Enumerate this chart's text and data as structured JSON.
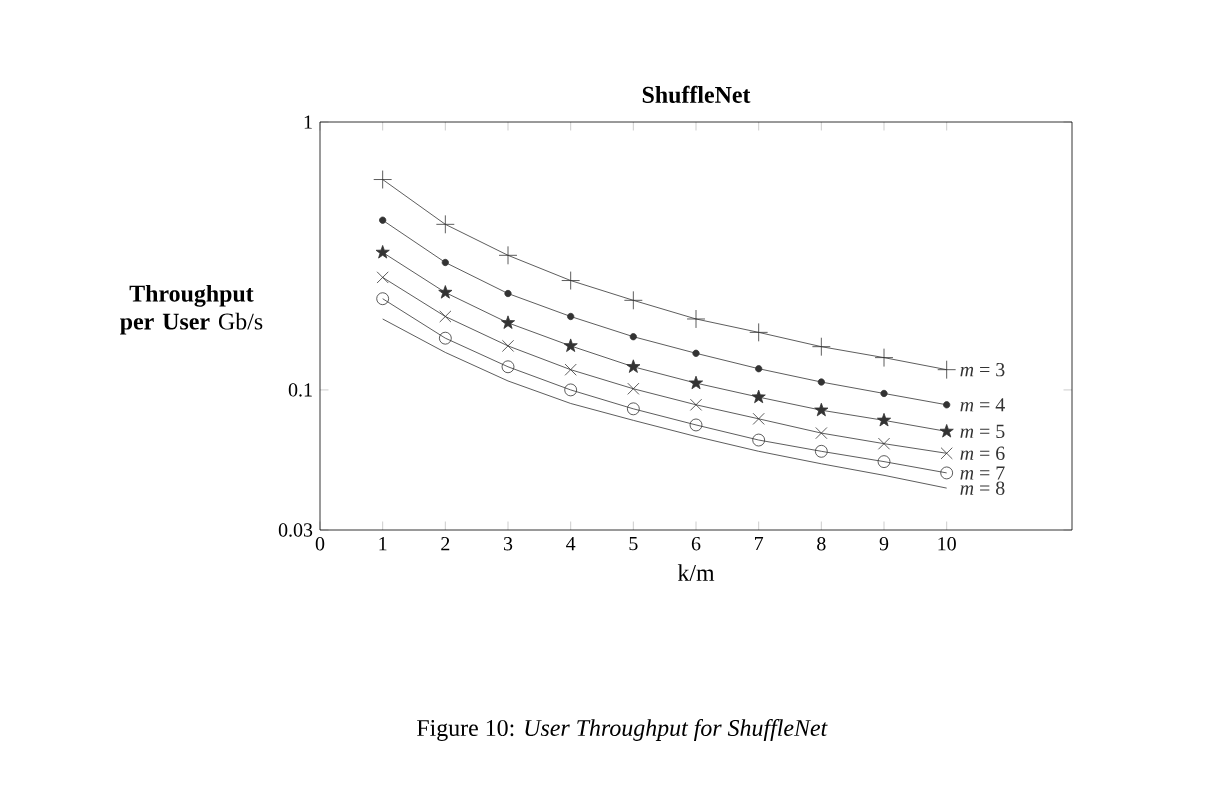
{
  "chart_data": {
    "type": "line",
    "title": "ShuffleNet",
    "xlabel": "k/m",
    "ylabel": "**Throughput per User** Gb/s",
    "x": [
      1,
      2,
      3,
      4,
      5,
      6,
      7,
      8,
      9,
      10
    ],
    "series": [
      {
        "name": "*m* = 3",
        "color": "#333333",
        "marker": "plus",
        "values": [
          0.61,
          0.415,
          0.318,
          0.256,
          0.216,
          0.184,
          0.164,
          0.145,
          0.132,
          0.119
        ]
      },
      {
        "name": "*m* = 4",
        "color": "#333333",
        "marker": "dot",
        "values": [
          0.43,
          0.299,
          0.229,
          0.188,
          0.158,
          0.137,
          0.12,
          0.107,
          0.097,
          0.088
        ]
      },
      {
        "name": "*m* = 5",
        "color": "#333333",
        "marker": "star",
        "values": [
          0.326,
          0.231,
          0.178,
          0.146,
          0.122,
          0.106,
          0.094,
          0.084,
          0.077,
          0.07
        ]
      },
      {
        "name": "*m* = 6",
        "color": "#333333",
        "marker": "cross",
        "values": [
          0.263,
          0.188,
          0.146,
          0.119,
          0.101,
          0.088,
          0.078,
          0.069,
          0.063,
          0.058
        ]
      },
      {
        "name": "*m* = 7",
        "color": "#333333",
        "marker": "circle",
        "values": [
          0.219,
          0.156,
          0.122,
          0.1,
          0.085,
          0.074,
          0.065,
          0.059,
          0.054,
          0.049
        ]
      },
      {
        "name": "*m* = 8",
        "color": "#333333",
        "marker": "none",
        "values": [
          0.184,
          0.138,
          0.108,
          0.089,
          0.077,
          0.067,
          0.059,
          0.053,
          0.048,
          0.043
        ]
      }
    ],
    "xlim": [
      0,
      12
    ],
    "xticks": [
      0,
      1,
      2,
      3,
      4,
      5,
      6,
      7,
      8,
      9,
      10
    ],
    "ylim": [
      0.03,
      1
    ],
    "yticks": [
      0.03,
      0.1,
      1
    ],
    "log": "y",
    "grid": false,
    "legend": false,
    "line_style": "solid",
    "annotations": [
      "Figure 10: *User Throughput for ShuffleNet*"
    ]
  }
}
